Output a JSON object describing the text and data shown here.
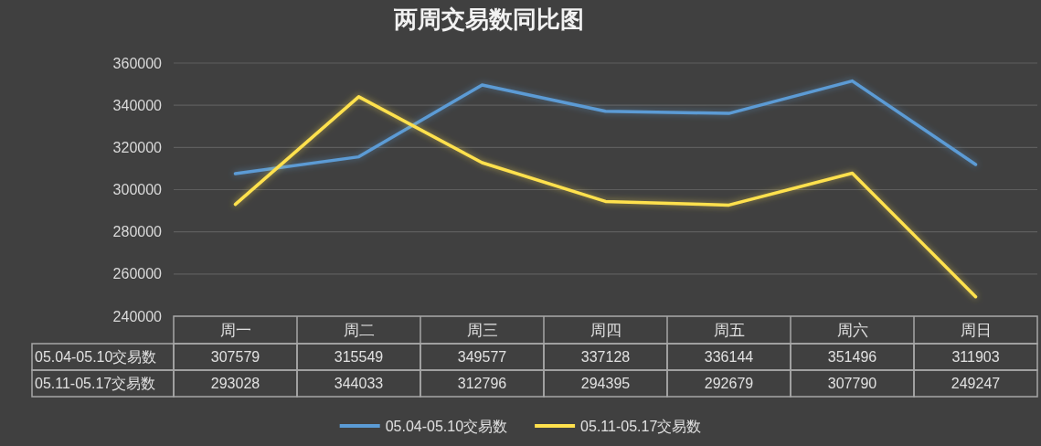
{
  "chart_data": {
    "type": "line",
    "title": "两周交易数同比图",
    "categories": [
      "周一",
      "周二",
      "周三",
      "周四",
      "周五",
      "周六",
      "周日"
    ],
    "series": [
      {
        "name": "05.04-05.10交易数",
        "color": "#5b9bd5",
        "values": [
          307579,
          315549,
          349577,
          337128,
          336144,
          351496,
          311903
        ]
      },
      {
        "name": "05.11-05.17交易数",
        "color": "#ffe14d",
        "values": [
          293028,
          344033,
          312796,
          294395,
          292679,
          307790,
          249247
        ]
      }
    ],
    "ylim": [
      240000,
      360000
    ],
    "yticks": [
      240000,
      260000,
      280000,
      300000,
      320000,
      340000,
      360000
    ],
    "grid": "y",
    "legend": "bottom",
    "data_labels": true
  }
}
